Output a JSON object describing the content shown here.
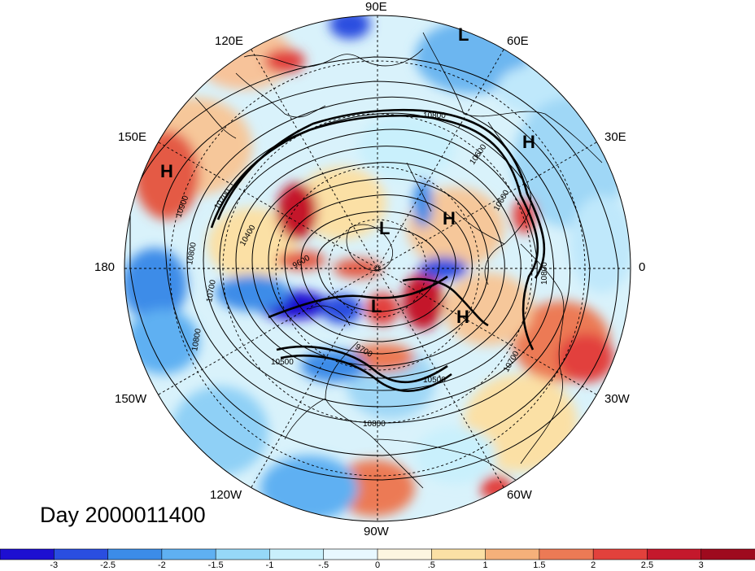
{
  "map": {
    "type": "polar-stereographic",
    "hemisphere": "north",
    "longitude_labels": [
      "90E",
      "60E",
      "30E",
      "0",
      "30W",
      "60W",
      "90W",
      "120W",
      "150W",
      "180",
      "150E",
      "120E"
    ],
    "day_label": "Day 2000011400",
    "pressure_highs_lows": [
      "L",
      "H",
      "H",
      "L",
      "H",
      "L",
      "H"
    ],
    "contour_labels": [
      "10800",
      "10600",
      "10900",
      "10700",
      "10400",
      "10800",
      "9600",
      "10700",
      "10800",
      "10600",
      "10500",
      "10500",
      "9700",
      "10800",
      "10700",
      "10800"
    ],
    "colors": {
      "neg3": "#1d0fd1",
      "neg25": "#2a4ee0",
      "neg2": "#3c8ce8",
      "neg15": "#5fb0f2",
      "neg1": "#96d8f8",
      "neg05": "#c9f0fc",
      "zero": "#fdf6e0",
      "pos05": "#fbe0a5",
      "pos1": "#f5b07a",
      "pos15": "#ec7a55",
      "pos2": "#e2413c",
      "pos25": "#c4182c",
      "pos3": "#9e0a1e"
    }
  },
  "colorbar": {
    "ticks": [
      "-3",
      "-2.5",
      "-2",
      "-1.5",
      "-1",
      "-.5",
      "0",
      ".5",
      "1",
      "1.5",
      "2",
      "2.5",
      "3"
    ],
    "colors": [
      "#1d0fd1",
      "#2a4ee0",
      "#3c8ce8",
      "#5fb0f2",
      "#96d8f8",
      "#c9f0fc",
      "#e8f8ff",
      "#fdf6e0",
      "#fbe0a5",
      "#f5b07a",
      "#ec7a55",
      "#e2413c",
      "#c4182c",
      "#9e0a1e"
    ]
  }
}
